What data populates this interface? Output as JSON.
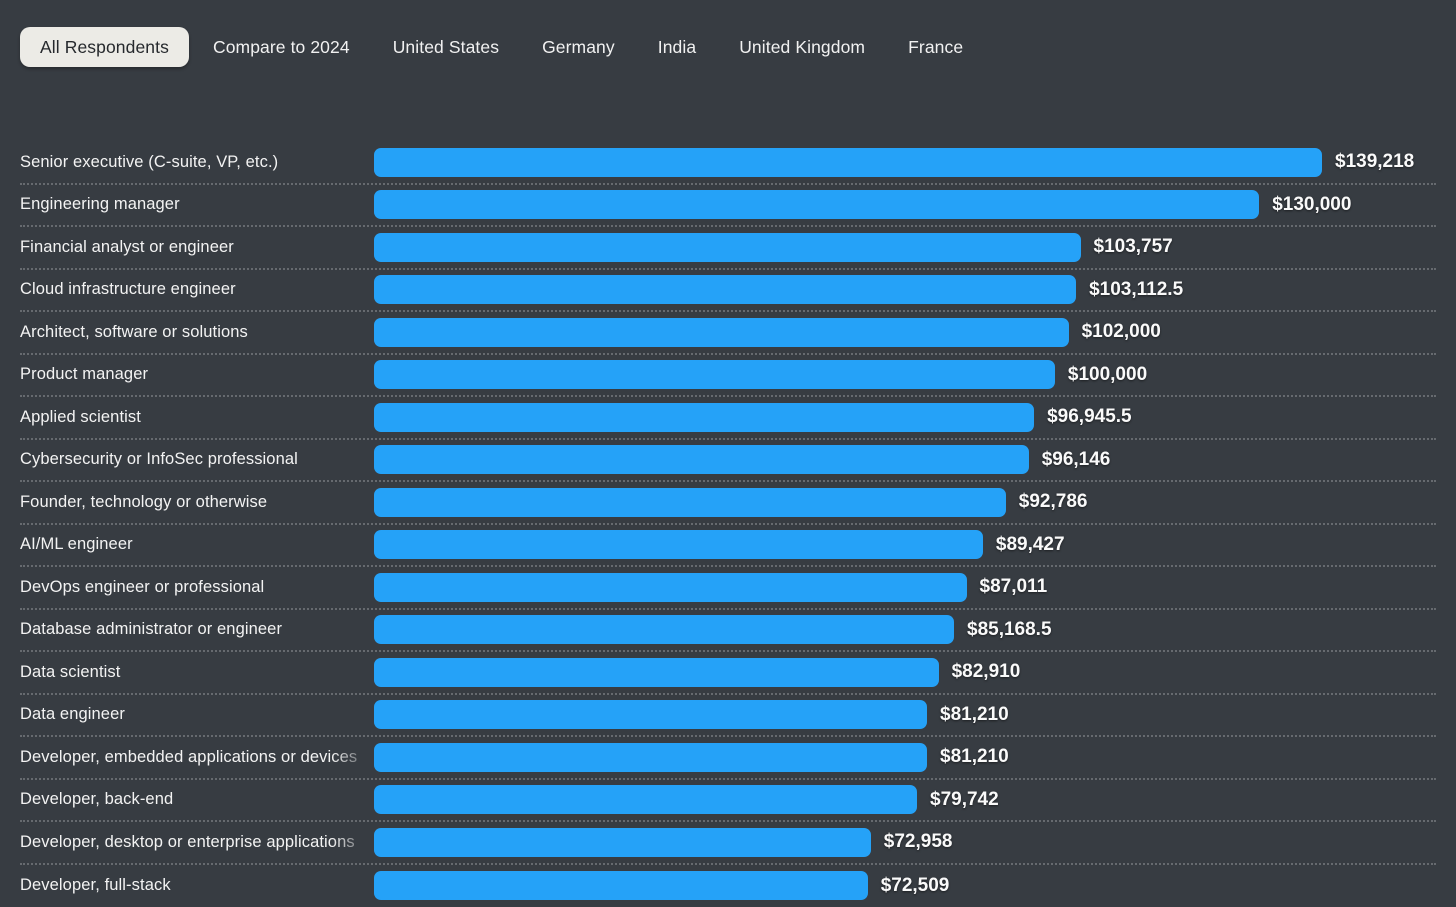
{
  "tabs": {
    "items": [
      {
        "label": "All Respondents",
        "selected": true
      },
      {
        "label": "Compare to 2024",
        "selected": false
      },
      {
        "label": "United States",
        "selected": false
      },
      {
        "label": "Germany",
        "selected": false
      },
      {
        "label": "India",
        "selected": false
      },
      {
        "label": "United Kingdom",
        "selected": false
      },
      {
        "label": "France",
        "selected": false
      }
    ]
  },
  "colors": {
    "background": "#373C42",
    "bar": "#25A2F8",
    "selected_tab_background": "#ECEBE6",
    "selected_tab_text": "#26292D",
    "tab_text": "#F1F1F1",
    "label_text": "#F3F3F3",
    "value_text": "#FAFAFA",
    "separator": "rgba(255,255,255,0.24)"
  },
  "chart_data": {
    "type": "bar",
    "orientation": "horizontal",
    "grid": "dotted row separators",
    "legend_position": "none",
    "xlim": [
      0,
      139218
    ],
    "categories": [
      "Senior executive (C-suite, VP, etc.)",
      "Engineering manager",
      "Financial analyst or engineer",
      "Cloud infrastructure engineer",
      "Architect, software or solutions",
      "Product manager",
      "Applied scientist",
      "Cybersecurity or InfoSec professional",
      "Founder, technology or otherwise",
      "AI/ML engineer",
      "DevOps engineer or professional",
      "Database administrator or engineer",
      "Data scientist",
      "Data engineer",
      "Developer, embedded applications or devices",
      "Developer, back-end",
      "Developer, desktop or enterprise applications",
      "Developer, full-stack"
    ],
    "values": [
      139218,
      130000,
      103757,
      103112.5,
      102000,
      100000,
      96945.5,
      96146,
      92786,
      89427,
      87011,
      85168.5,
      82910,
      81210,
      81210,
      79742,
      72958,
      72509
    ],
    "value_labels": [
      "$139,218",
      "$130,000",
      "$103,757",
      "$103,112.5",
      "$102,000",
      "$100,000",
      "$96,945.5",
      "$96,146",
      "$92,786",
      "$89,427",
      "$87,011",
      "$85,168.5",
      "$82,910",
      "$81,210",
      "$81,210",
      "$79,742",
      "$72,958",
      "$72,509"
    ]
  }
}
